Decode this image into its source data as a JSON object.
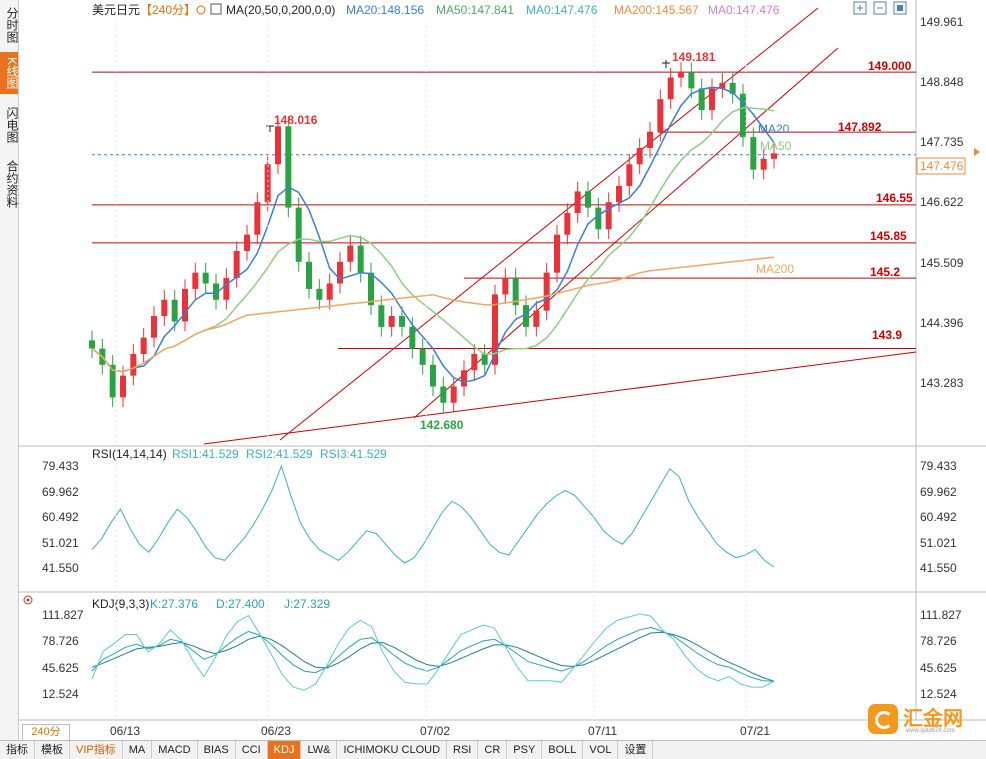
{
  "left_tabs": [
    "分时图",
    "K线图",
    "闪电图",
    "合约资料"
  ],
  "active_left_tab": 1,
  "header": {
    "symbol": "美元日元",
    "period_tag": "【240分】",
    "ma_params": "MA(20,50,0,200,0,0)",
    "ma20": "MA20:148.156",
    "ma50": "MA50:147.841",
    "ma0": "MA0:147.476",
    "ma200": "MA200:145.567",
    "ma0b": "MA0:147.476"
  },
  "colors": {
    "up": "#e8333a",
    "down": "#2aa344",
    "ma20": "#3a7fd6",
    "ma50": "#8ccf7e",
    "ma200": "#f5a561",
    "line": "#cc0000",
    "rsi": "#3ab0c8",
    "kdj": "#2aa3b8"
  },
  "price_axis": {
    "ticks": [
      "149.961",
      "148.848",
      "147.735",
      "146.622",
      "145.509",
      "144.396",
      "143.283"
    ],
    "current": "147.476"
  },
  "annotations": {
    "high1": "148.016",
    "high2": "149.181",
    "low1": "142.680"
  },
  "levels": [
    "149.000",
    "147.892",
    "146.55",
    "145.85",
    "145.2",
    "143.9"
  ],
  "ma_labels": {
    "ma20": "MA20",
    "ma50": "MA50",
    "ma200": "MA200"
  },
  "rsi": {
    "header": "RSI(14,14,14)",
    "rsi1": "RSI1:41.529",
    "rsi2": "RSI2:41.529",
    "rsi3": "RSI3:41.529",
    "ticks": [
      "79.433",
      "69.962",
      "60.492",
      "51.021",
      "41.550"
    ]
  },
  "kdj": {
    "header": "KDJ(9,3,3)",
    "k": "K:27.376",
    "d": "D:27.400",
    "j": "J:27.329",
    "ticks": [
      "111.827",
      "78.726",
      "45.625",
      "12.524"
    ]
  },
  "date_axis": [
    "06/13",
    "06/23",
    "07/02",
    "07/11",
    "07/21"
  ],
  "period_select": "240分",
  "bottom_tabs": [
    "指标",
    "模板",
    "VIP指标",
    "MA",
    "MACD",
    "BIAS",
    "CCI",
    "KDJ",
    "LW&",
    "ICHIMOKU CLOUD",
    "RSI",
    "CR",
    "PSY",
    "BOLL",
    "VOL",
    "设置"
  ],
  "active_bottom_tab": "KDJ",
  "logo": {
    "name": "汇金网",
    "url": "www.gold678.com"
  },
  "chart_data": {
    "type": "candlestick",
    "title": "美元日元",
    "period": "240分",
    "x_dates": [
      "06/13",
      "06/23",
      "07/02",
      "07/11",
      "07/21"
    ],
    "ylim": [
      142.68,
      149.961
    ],
    "price_close_series": [
      143.9,
      143.6,
      143.0,
      143.4,
      143.8,
      144.1,
      144.5,
      144.8,
      144.4,
      145.0,
      145.3,
      145.1,
      144.8,
      145.2,
      145.7,
      146.0,
      146.6,
      147.3,
      148.0,
      146.5,
      145.5,
      145.0,
      144.8,
      145.1,
      145.5,
      145.8,
      145.3,
      144.7,
      144.3,
      144.5,
      144.3,
      143.9,
      143.6,
      143.2,
      142.9,
      143.2,
      143.5,
      143.8,
      143.6,
      144.9,
      145.2,
      144.7,
      144.3,
      144.6,
      145.3,
      146.0,
      146.4,
      146.8,
      146.5,
      146.1,
      146.6,
      146.9,
      147.3,
      147.6,
      147.9,
      148.5,
      148.9,
      149.0,
      148.7,
      148.3,
      148.7,
      148.8,
      148.6,
      147.8,
      147.2,
      147.4,
      147.5
    ],
    "ma20": "148.156",
    "ma50": "147.841",
    "ma200": "145.567",
    "high_marks": [
      "148.016",
      "149.181"
    ],
    "low_marks": [
      "142.680"
    ],
    "horizontal_levels": [
      149.0,
      147.892,
      146.55,
      145.85,
      145.2,
      143.9
    ],
    "rsi_values": [
      48,
      52,
      58,
      63,
      56,
      50,
      47,
      52,
      58,
      63,
      60,
      55,
      49,
      45,
      44,
      48,
      52,
      57,
      63,
      70,
      79,
      68,
      58,
      52,
      48,
      46,
      44,
      47,
      51,
      55,
      54,
      50,
      46,
      43,
      45,
      50,
      56,
      62,
      66,
      64,
      60,
      55,
      50,
      47,
      46,
      51,
      56,
      61,
      65,
      68,
      70,
      68,
      64,
      60,
      55,
      52,
      50,
      54,
      60,
      66,
      72,
      78,
      75,
      66,
      60,
      55,
      50,
      47,
      45,
      46,
      48,
      44,
      41.5
    ],
    "k_values": [
      40,
      55,
      62,
      70,
      74,
      68,
      72,
      80,
      77,
      66,
      55,
      60,
      72,
      82,
      90,
      85,
      74,
      60,
      48,
      40,
      38,
      45,
      58,
      70,
      80,
      82,
      72,
      60,
      50,
      44,
      40,
      45,
      55,
      66,
      72,
      78,
      80,
      72,
      62,
      52,
      48,
      44,
      40,
      45,
      52,
      62,
      72,
      80,
      86,
      92,
      95,
      90,
      84,
      74,
      64,
      55,
      48,
      45,
      38,
      32,
      28,
      27.4
    ],
    "d_values": [
      45,
      50,
      56,
      62,
      68,
      70,
      71,
      74,
      76,
      72,
      66,
      62,
      66,
      72,
      80,
      84,
      80,
      72,
      62,
      52,
      45,
      44,
      50,
      58,
      68,
      75,
      76,
      70,
      62,
      54,
      48,
      46,
      50,
      56,
      62,
      68,
      73,
      73,
      70,
      64,
      58,
      52,
      47,
      46,
      48,
      54,
      61,
      68,
      75,
      82,
      88,
      89,
      86,
      81,
      74,
      66,
      58,
      51,
      45,
      38,
      32,
      27.4
    ],
    "j_values": [
      30,
      65,
      75,
      86,
      86,
      64,
      74,
      92,
      79,
      54,
      33,
      56,
      84,
      102,
      110,
      87,
      62,
      36,
      20,
      16,
      24,
      47,
      74,
      94,
      104,
      96,
      64,
      40,
      26,
      24,
      24,
      43,
      65,
      86,
      92,
      98,
      94,
      70,
      46,
      28,
      28,
      28,
      26,
      43,
      60,
      78,
      94,
      104,
      108,
      112,
      109,
      92,
      80,
      60,
      44,
      33,
      28,
      33,
      24,
      20,
      20,
      27.3
    ]
  }
}
